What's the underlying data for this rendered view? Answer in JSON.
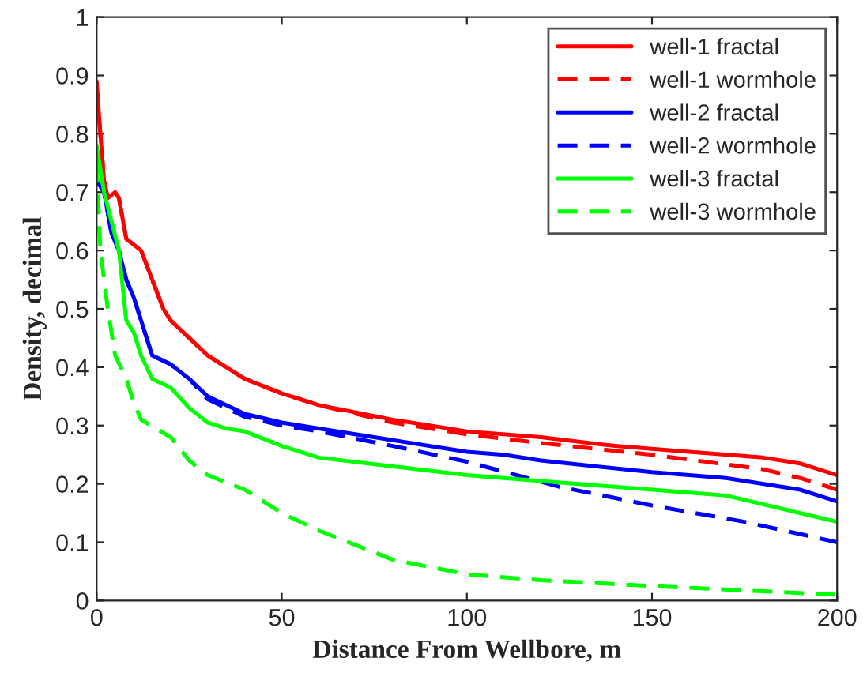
{
  "chart_data": {
    "type": "line",
    "xlabel": "Distance From Wellbore, m",
    "ylabel": "Density, decimal",
    "xlim": [
      0,
      200
    ],
    "xticks": [
      0,
      50,
      100,
      150,
      200
    ],
    "ylim": [
      0,
      1
    ],
    "yticks": [
      0,
      0.1,
      0.2,
      0.3,
      0.4,
      0.5,
      0.6,
      0.7,
      0.8,
      0.9,
      1
    ],
    "grid": false,
    "legend": "top right",
    "series": [
      {
        "name": "well-1 fractal",
        "color": "#ff0000",
        "line_style": "solid",
        "x": [
          0,
          1,
          2,
          3,
          5,
          6,
          8,
          10,
          12,
          15,
          18,
          20,
          25,
          30,
          40,
          50,
          60,
          80,
          100,
          120,
          140,
          160,
          180,
          190,
          200
        ],
        "values": [
          0.89,
          0.8,
          0.72,
          0.69,
          0.7,
          0.69,
          0.62,
          0.61,
          0.6,
          0.55,
          0.5,
          0.48,
          0.45,
          0.42,
          0.38,
          0.355,
          0.335,
          0.31,
          0.29,
          0.28,
          0.265,
          0.255,
          0.245,
          0.235,
          0.215
        ]
      },
      {
        "name": "well-1 wormhole",
        "color": "#ff0000",
        "line_style": "dashed",
        "x": [
          0,
          1,
          2,
          3,
          5,
          6,
          8,
          10,
          12,
          15,
          18,
          20,
          25,
          30,
          40,
          50,
          60,
          80,
          100,
          120,
          150,
          180,
          190,
          200
        ],
        "values": [
          0.88,
          0.8,
          0.72,
          0.69,
          0.7,
          0.69,
          0.62,
          0.61,
          0.6,
          0.55,
          0.5,
          0.48,
          0.45,
          0.42,
          0.38,
          0.355,
          0.335,
          0.305,
          0.285,
          0.27,
          0.25,
          0.225,
          0.21,
          0.19
        ]
      },
      {
        "name": "well-2 fractal",
        "color": "#0000ff",
        "line_style": "solid",
        "x": [
          0,
          2,
          4,
          6,
          8,
          10,
          12,
          15,
          20,
          25,
          30,
          40,
          50,
          60,
          80,
          100,
          110,
          120,
          150,
          170,
          190,
          200
        ],
        "values": [
          0.72,
          0.7,
          0.63,
          0.6,
          0.55,
          0.52,
          0.48,
          0.42,
          0.405,
          0.38,
          0.35,
          0.32,
          0.305,
          0.295,
          0.275,
          0.255,
          0.25,
          0.24,
          0.22,
          0.21,
          0.19,
          0.17
        ]
      },
      {
        "name": "well-2 wormhole",
        "color": "#0000ff",
        "line_style": "dashed",
        "x": [
          0,
          2,
          4,
          6,
          8,
          10,
          12,
          15,
          20,
          25,
          30,
          40,
          50,
          60,
          80,
          100,
          125,
          150,
          175,
          200
        ],
        "values": [
          0.72,
          0.7,
          0.63,
          0.6,
          0.55,
          0.52,
          0.48,
          0.42,
          0.405,
          0.38,
          0.345,
          0.315,
          0.3,
          0.29,
          0.265,
          0.238,
          0.195,
          0.163,
          0.135,
          0.1
        ]
      },
      {
        "name": "well-3 fractal",
        "color": "#00ff00",
        "line_style": "solid",
        "x": [
          0,
          2,
          4,
          6,
          8,
          10,
          12,
          15,
          20,
          25,
          30,
          35,
          40,
          50,
          60,
          80,
          100,
          120,
          150,
          170,
          200
        ],
        "values": [
          0.78,
          0.7,
          0.65,
          0.6,
          0.48,
          0.46,
          0.42,
          0.38,
          0.365,
          0.33,
          0.305,
          0.295,
          0.29,
          0.265,
          0.245,
          0.23,
          0.215,
          0.205,
          0.19,
          0.18,
          0.135
        ]
      },
      {
        "name": "well-3 wormhole",
        "color": "#00ff00",
        "line_style": "dashed",
        "x": [
          0,
          1,
          3,
          5,
          8,
          10,
          12,
          20,
          25,
          30,
          40,
          50,
          60,
          70,
          80,
          100,
          120,
          150,
          200
        ],
        "values": [
          0.75,
          0.6,
          0.5,
          0.42,
          0.38,
          0.34,
          0.31,
          0.28,
          0.24,
          0.215,
          0.19,
          0.15,
          0.12,
          0.095,
          0.07,
          0.045,
          0.035,
          0.025,
          0.01
        ]
      }
    ]
  }
}
